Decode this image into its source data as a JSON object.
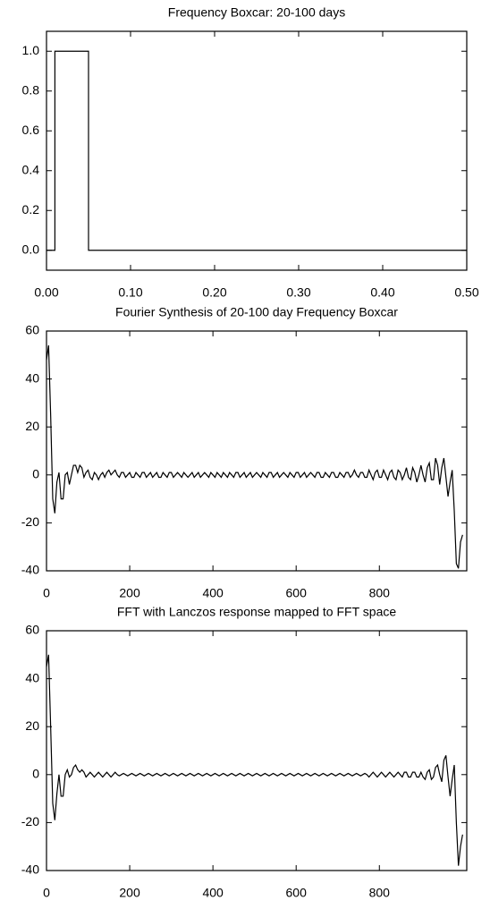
{
  "chart_data": [
    {
      "type": "line",
      "title": "Frequency Boxcar: 20-100 days",
      "x": [
        0,
        0.01,
        0.01,
        0.05,
        0.05,
        0.5
      ],
      "values": [
        0,
        0,
        1,
        1,
        0,
        0
      ],
      "color": "#000000",
      "xlim": [
        0,
        0.5
      ],
      "ylim": [
        -0.1,
        1.1
      ],
      "xticks": [
        {
          "value": 0,
          "label": "0.00"
        },
        {
          "value": 0.1,
          "label": "0.10"
        },
        {
          "value": 0.2,
          "label": "0.20"
        },
        {
          "value": 0.3,
          "label": "0.30"
        },
        {
          "value": 0.4,
          "label": "0.40"
        },
        {
          "value": 0.5,
          "label": "0.50"
        }
      ],
      "yticks": [
        {
          "value": 0,
          "label": "0.0"
        },
        {
          "value": 0.2,
          "label": "0.2"
        },
        {
          "value": 0.4,
          "label": "0.4"
        },
        {
          "value": 0.6,
          "label": "0.6"
        },
        {
          "value": 0.8,
          "label": "0.8"
        },
        {
          "value": 1,
          "label": "1.0"
        }
      ]
    },
    {
      "type": "line",
      "title": "Fourier Synthesis of 20-100 day Frequency Boxcar",
      "x": [
        0,
        5,
        10,
        15,
        20,
        25,
        30,
        35,
        40,
        45,
        50,
        55,
        60,
        65,
        70,
        75,
        80,
        85,
        90,
        95,
        100,
        105,
        110,
        115,
        120,
        125,
        130,
        135,
        140,
        145,
        150,
        155,
        160,
        165,
        170,
        175,
        180,
        185,
        190,
        195,
        200,
        205,
        210,
        215,
        220,
        225,
        230,
        235,
        240,
        245,
        250,
        255,
        260,
        265,
        270,
        275,
        280,
        285,
        290,
        295,
        300,
        305,
        310,
        315,
        320,
        325,
        330,
        335,
        340,
        345,
        350,
        355,
        360,
        365,
        370,
        375,
        380,
        385,
        390,
        395,
        400,
        405,
        410,
        415,
        420,
        425,
        430,
        435,
        440,
        445,
        450,
        455,
        460,
        465,
        470,
        475,
        480,
        485,
        490,
        495,
        500,
        505,
        510,
        515,
        520,
        525,
        530,
        535,
        540,
        545,
        550,
        555,
        560,
        565,
        570,
        575,
        580,
        585,
        590,
        595,
        600,
        605,
        610,
        615,
        620,
        625,
        630,
        635,
        640,
        645,
        650,
        655,
        660,
        665,
        670,
        675,
        680,
        685,
        690,
        695,
        700,
        705,
        710,
        715,
        720,
        725,
        730,
        735,
        740,
        745,
        750,
        755,
        760,
        765,
        770,
        775,
        780,
        785,
        790,
        795,
        800,
        805,
        810,
        815,
        820,
        825,
        830,
        835,
        840,
        845,
        850,
        855,
        860,
        865,
        870,
        875,
        880,
        885,
        890,
        895,
        900,
        905,
        910,
        915,
        920,
        925,
        930,
        935,
        940,
        945,
        950,
        955,
        960,
        965,
        970,
        975,
        980,
        985,
        990,
        995,
        1000
      ],
      "values": [
        48,
        54,
        25,
        -10,
        -16,
        -3,
        1,
        -10,
        -10,
        0,
        1,
        -4,
        0,
        4,
        4,
        1,
        4,
        3,
        -1,
        1,
        2,
        -1,
        -2,
        1,
        0,
        -2,
        0,
        1,
        -1,
        1,
        2,
        0,
        1,
        2,
        0,
        -1,
        1,
        1,
        -1,
        0,
        1,
        -1,
        -1,
        1,
        0,
        -1,
        1,
        1,
        -1,
        0,
        1,
        -1,
        0,
        1,
        -1,
        -1,
        1,
        0,
        -1,
        1,
        1,
        -1,
        0,
        1,
        0,
        -1,
        1,
        0,
        -1,
        0,
        1,
        -1,
        0,
        1,
        -1,
        0,
        1,
        0,
        -1,
        1,
        0,
        -1,
        1,
        0,
        -1,
        1,
        0,
        -1,
        1,
        0,
        -1,
        1,
        1,
        -1,
        0,
        1,
        -1,
        0,
        1,
        -1,
        0,
        1,
        0,
        -1,
        1,
        0,
        -1,
        1,
        1,
        -1,
        0,
        1,
        -1,
        0,
        1,
        0,
        -1,
        1,
        0,
        -1,
        1,
        1,
        -1,
        0,
        1,
        -1,
        0,
        1,
        0,
        -1,
        1,
        1,
        -1,
        -1,
        1,
        0,
        -1,
        1,
        1,
        -1,
        -1,
        1,
        0,
        -1,
        1,
        1,
        -1,
        0,
        2,
        0,
        -1,
        1,
        1,
        -1,
        -1,
        2,
        0,
        -2,
        1,
        2,
        -1,
        -1,
        2,
        0,
        -2,
        1,
        2,
        -1,
        -2,
        2,
        1,
        -2,
        0,
        3,
        -1,
        -2,
        3,
        1,
        -3,
        0,
        4,
        0,
        -3,
        3,
        5,
        -2,
        -2,
        7,
        4,
        -4,
        3,
        7,
        -1,
        -9,
        -3,
        2,
        -15,
        -37,
        -39,
        -28,
        -25
      ],
      "color": "#000000",
      "xlim": [
        0,
        1010
      ],
      "ylim": [
        -40,
        60
      ],
      "xticks": [
        0,
        200,
        400,
        600,
        800
      ],
      "yticks": [
        -40,
        -20,
        0,
        20,
        40,
        60
      ]
    },
    {
      "type": "line",
      "title": "FFT with Lanczos response mapped to FFT space",
      "x": [
        0,
        5,
        10,
        15,
        20,
        25,
        30,
        35,
        40,
        45,
        50,
        55,
        60,
        65,
        70,
        75,
        80,
        85,
        90,
        95,
        100,
        105,
        110,
        115,
        120,
        125,
        130,
        135,
        140,
        145,
        150,
        155,
        160,
        165,
        170,
        175,
        180,
        185,
        190,
        195,
        200,
        205,
        210,
        215,
        220,
        225,
        230,
        235,
        240,
        245,
        250,
        255,
        260,
        265,
        270,
        275,
        280,
        285,
        290,
        295,
        300,
        305,
        310,
        315,
        320,
        325,
        330,
        335,
        340,
        345,
        350,
        355,
        360,
        365,
        370,
        375,
        380,
        385,
        390,
        395,
        400,
        405,
        410,
        415,
        420,
        425,
        430,
        435,
        440,
        445,
        450,
        455,
        460,
        465,
        470,
        475,
        480,
        485,
        490,
        495,
        500,
        505,
        510,
        515,
        520,
        525,
        530,
        535,
        540,
        545,
        550,
        555,
        560,
        565,
        570,
        575,
        580,
        585,
        590,
        595,
        600,
        605,
        610,
        615,
        620,
        625,
        630,
        635,
        640,
        645,
        650,
        655,
        660,
        665,
        670,
        675,
        680,
        685,
        690,
        695,
        700,
        705,
        710,
        715,
        720,
        725,
        730,
        735,
        740,
        745,
        750,
        755,
        760,
        765,
        770,
        775,
        780,
        785,
        790,
        795,
        800,
        805,
        810,
        815,
        820,
        825,
        830,
        835,
        840,
        845,
        850,
        855,
        860,
        865,
        870,
        875,
        880,
        885,
        890,
        895,
        900,
        905,
        910,
        915,
        920,
        925,
        930,
        935,
        940,
        945,
        950,
        955,
        960,
        965,
        970,
        975,
        980,
        985,
        990,
        995,
        1000
      ],
      "values": [
        45,
        50,
        20,
        -12,
        -19,
        -8,
        0,
        -9,
        -9,
        0,
        2,
        -1,
        0,
        3,
        4,
        2,
        1,
        2,
        1,
        -1,
        0,
        1,
        0,
        -1,
        0,
        1,
        0,
        -1,
        0,
        1,
        0,
        -1,
        0,
        1,
        0,
        -0.5,
        0,
        0.5,
        0,
        -0.5,
        0,
        0.5,
        0,
        -0.5,
        0,
        0.5,
        0,
        -0.5,
        0,
        0.5,
        0,
        -0.5,
        0,
        0.5,
        0,
        -0.5,
        0,
        0.5,
        0,
        -0.5,
        0,
        0.5,
        0,
        -0.5,
        0,
        0.5,
        0,
        -0.5,
        0,
        0.5,
        0,
        -0.5,
        0,
        0.5,
        0,
        -0.5,
        0,
        0.5,
        0,
        -0.5,
        0,
        0.5,
        0,
        -0.5,
        0,
        0.5,
        0,
        -0.5,
        0,
        0.5,
        0,
        -0.5,
        0,
        0.5,
        0,
        -0.5,
        0,
        0.5,
        0,
        -0.5,
        0,
        0.5,
        0,
        -0.5,
        0,
        0.5,
        0,
        -0.5,
        0,
        0.5,
        0,
        -0.5,
        0,
        0.5,
        0,
        -0.5,
        0,
        0.5,
        0,
        -0.5,
        0,
        0.5,
        0,
        -0.5,
        0,
        0.5,
        0,
        -0.5,
        0,
        0.5,
        0,
        -0.5,
        0,
        0.5,
        0,
        -0.5,
        0,
        0.5,
        0,
        -0.5,
        0,
        0.5,
        0,
        -0.5,
        0,
        0.5,
        0,
        -0.5,
        0,
        0.5,
        0,
        -0.5,
        0,
        0.5,
        0,
        -1,
        0,
        1,
        0,
        -1,
        0,
        1,
        0,
        -1,
        0,
        1,
        0,
        -1,
        0,
        1,
        0,
        -1,
        1,
        1,
        -1,
        -1,
        1,
        1,
        -1,
        -1,
        1,
        -1,
        -2,
        1,
        2,
        -2,
        -1,
        3,
        4,
        0,
        -3,
        6,
        8,
        -1,
        -9,
        -2,
        4,
        -20,
        -38,
        -30,
        -25
      ],
      "color": "#000000",
      "xlim": [
        0,
        1010
      ],
      "ylim": [
        -40,
        60
      ],
      "xticks": [
        0,
        200,
        400,
        600,
        800
      ],
      "yticks": [
        -40,
        -20,
        0,
        20,
        40,
        60
      ]
    }
  ]
}
